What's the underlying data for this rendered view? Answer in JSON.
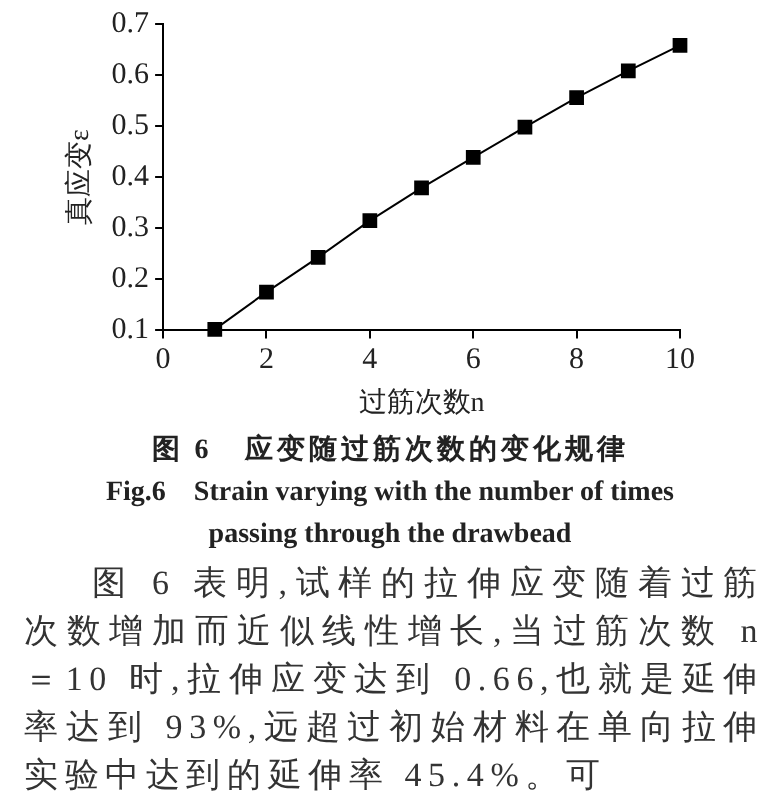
{
  "chart_data": {
    "type": "line",
    "xlabel": "过筋次数n",
    "ylabel": "真应变ε",
    "x": [
      1,
      2,
      3,
      4,
      5,
      6,
      7,
      8,
      9,
      10
    ],
    "series": [
      {
        "color": "#000000",
        "values": [
          0.102,
          0.175,
          0.243,
          0.315,
          0.379,
          0.439,
          0.498,
          0.556,
          0.608,
          0.658
        ]
      }
    ],
    "xlim": [
      0,
      10
    ],
    "xticks": [
      0,
      2,
      4,
      6,
      8,
      10
    ],
    "ylim": [
      0.1,
      0.7
    ],
    "yticks": [
      0.1,
      0.2,
      0.3,
      0.4,
      0.5,
      0.6,
      0.7
    ],
    "marker": "square",
    "line_style": "solid",
    "grid": false,
    "legend": false,
    "annotations": [
      "图 6　应变随过筋次数的变化规律",
      "Fig.6　Strain varying with the number of times passing through the drawbead",
      "图 6 表明,试样的拉伸应变随着过筋次数增加而近似线性增长,当过筋次数 n＝10 时,拉伸应变达到 0.66,也就是延伸率达到 93%,远超过初始材料在单向拉伸实验中达到的延伸率 45.4%。可"
    ]
  }
}
